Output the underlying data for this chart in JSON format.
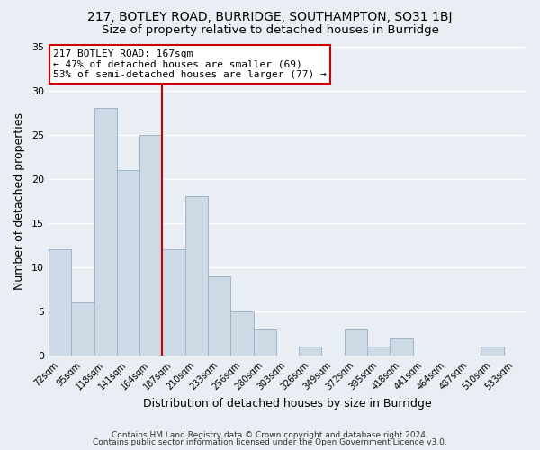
{
  "title": "217, BOTLEY ROAD, BURRIDGE, SOUTHAMPTON, SO31 1BJ",
  "subtitle": "Size of property relative to detached houses in Burridge",
  "xlabel": "Distribution of detached houses by size in Burridge",
  "ylabel": "Number of detached properties",
  "footer_line1": "Contains HM Land Registry data © Crown copyright and database right 2024.",
  "footer_line2": "Contains public sector information licensed under the Open Government Licence v3.0.",
  "bin_labels": [
    "72sqm",
    "95sqm",
    "118sqm",
    "141sqm",
    "164sqm",
    "187sqm",
    "210sqm",
    "233sqm",
    "256sqm",
    "280sqm",
    "303sqm",
    "326sqm",
    "349sqm",
    "372sqm",
    "395sqm",
    "418sqm",
    "441sqm",
    "464sqm",
    "487sqm",
    "510sqm",
    "533sqm"
  ],
  "bar_values": [
    12,
    6,
    28,
    21,
    25,
    12,
    18,
    9,
    5,
    3,
    0,
    1,
    0,
    3,
    1,
    2,
    0,
    0,
    0,
    1,
    0
  ],
  "bar_color": "#cdd9e5",
  "bar_edge_color": "#9eb5c8",
  "red_line_x": 4.5,
  "red_line_color": "#cc0000",
  "ylim": [
    0,
    35
  ],
  "yticks": [
    0,
    5,
    10,
    15,
    20,
    25,
    30,
    35
  ],
  "annotation_text": "217 BOTLEY ROAD: 167sqm\n← 47% of detached houses are smaller (69)\n53% of semi-detached houses are larger (77) →",
  "annotation_box_color": "#ffffff",
  "annotation_box_edge": "#cc0000",
  "background_color": "#e8eef4",
  "plot_background": "#e8eef4",
  "grid_color": "#ffffff",
  "title_fontsize": 10,
  "subtitle_fontsize": 9.5
}
